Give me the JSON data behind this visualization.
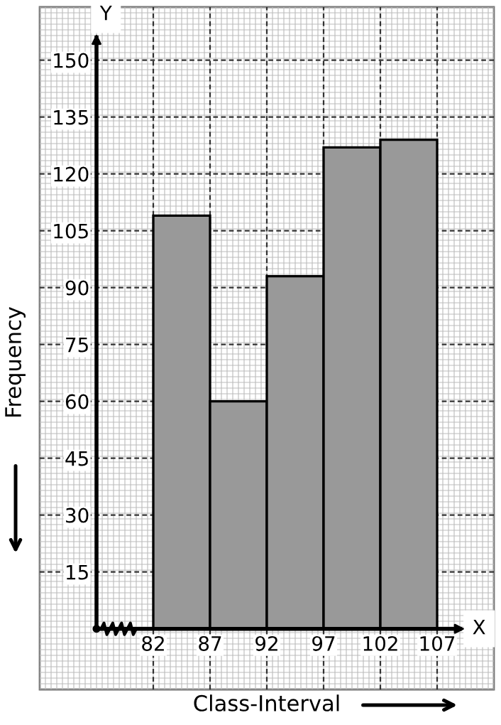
{
  "chart_data": {
    "type": "histogram",
    "xlabel": "Class-Interval",
    "ylabel": "Frequency",
    "bins": [
      82,
      87,
      92,
      97,
      102,
      107
    ],
    "values": [
      109,
      60,
      93,
      127,
      129
    ],
    "color": "#999999",
    "xlim": [
      72,
      112
    ],
    "xticks": [
      82,
      87,
      92,
      97,
      102,
      107
    ],
    "ylim": [
      -16,
      164
    ],
    "yticks": [
      15,
      30,
      45,
      60,
      75,
      90,
      105,
      120,
      135,
      150
    ],
    "grid": true,
    "annotations": [
      "Y",
      "X"
    ]
  }
}
